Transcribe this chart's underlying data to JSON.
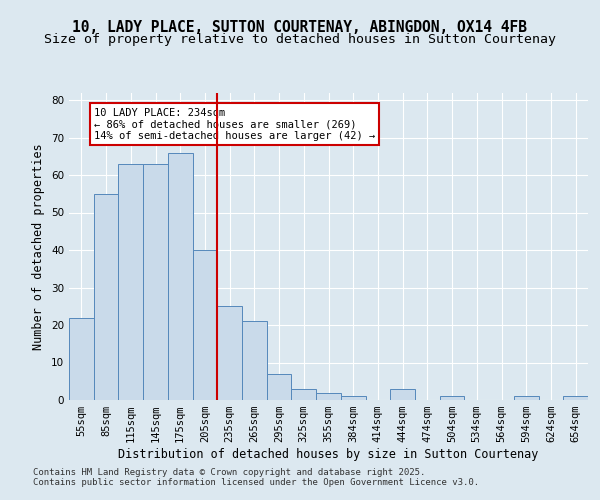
{
  "title_line1": "10, LADY PLACE, SUTTON COURTENAY, ABINGDON, OX14 4FB",
  "title_line2": "Size of property relative to detached houses in Sutton Courtenay",
  "xlabel": "Distribution of detached houses by size in Sutton Courtenay",
  "ylabel": "Number of detached properties",
  "categories": [
    "55sqm",
    "85sqm",
    "115sqm",
    "145sqm",
    "175sqm",
    "205sqm",
    "235sqm",
    "265sqm",
    "295sqm",
    "325sqm",
    "355sqm",
    "384sqm",
    "414sqm",
    "444sqm",
    "474sqm",
    "504sqm",
    "534sqm",
    "564sqm",
    "594sqm",
    "624sqm",
    "654sqm"
  ],
  "values": [
    22,
    55,
    63,
    63,
    66,
    40,
    25,
    21,
    7,
    3,
    2,
    1,
    0,
    3,
    0,
    1,
    0,
    0,
    1,
    0,
    1
  ],
  "bar_color": "#c9daea",
  "bar_edge_color": "#5588bb",
  "subject_line_color": "#cc0000",
  "annotation_text": "10 LADY PLACE: 234sqm\n← 86% of detached houses are smaller (269)\n14% of semi-detached houses are larger (42) →",
  "annotation_box_color": "#ffffff",
  "annotation_box_edge_color": "#cc0000",
  "ylim": [
    0,
    82
  ],
  "yticks": [
    0,
    10,
    20,
    30,
    40,
    50,
    60,
    70,
    80
  ],
  "background_color": "#dce8f0",
  "plot_background_color": "#dce8f0",
  "grid_color": "#ffffff",
  "footer_line1": "Contains HM Land Registry data © Crown copyright and database right 2025.",
  "footer_line2": "Contains public sector information licensed under the Open Government Licence v3.0.",
  "title_fontsize": 10.5,
  "subtitle_fontsize": 9.5,
  "axis_label_fontsize": 8.5,
  "tick_fontsize": 7.5,
  "annotation_fontsize": 7.5,
  "footer_fontsize": 6.5
}
